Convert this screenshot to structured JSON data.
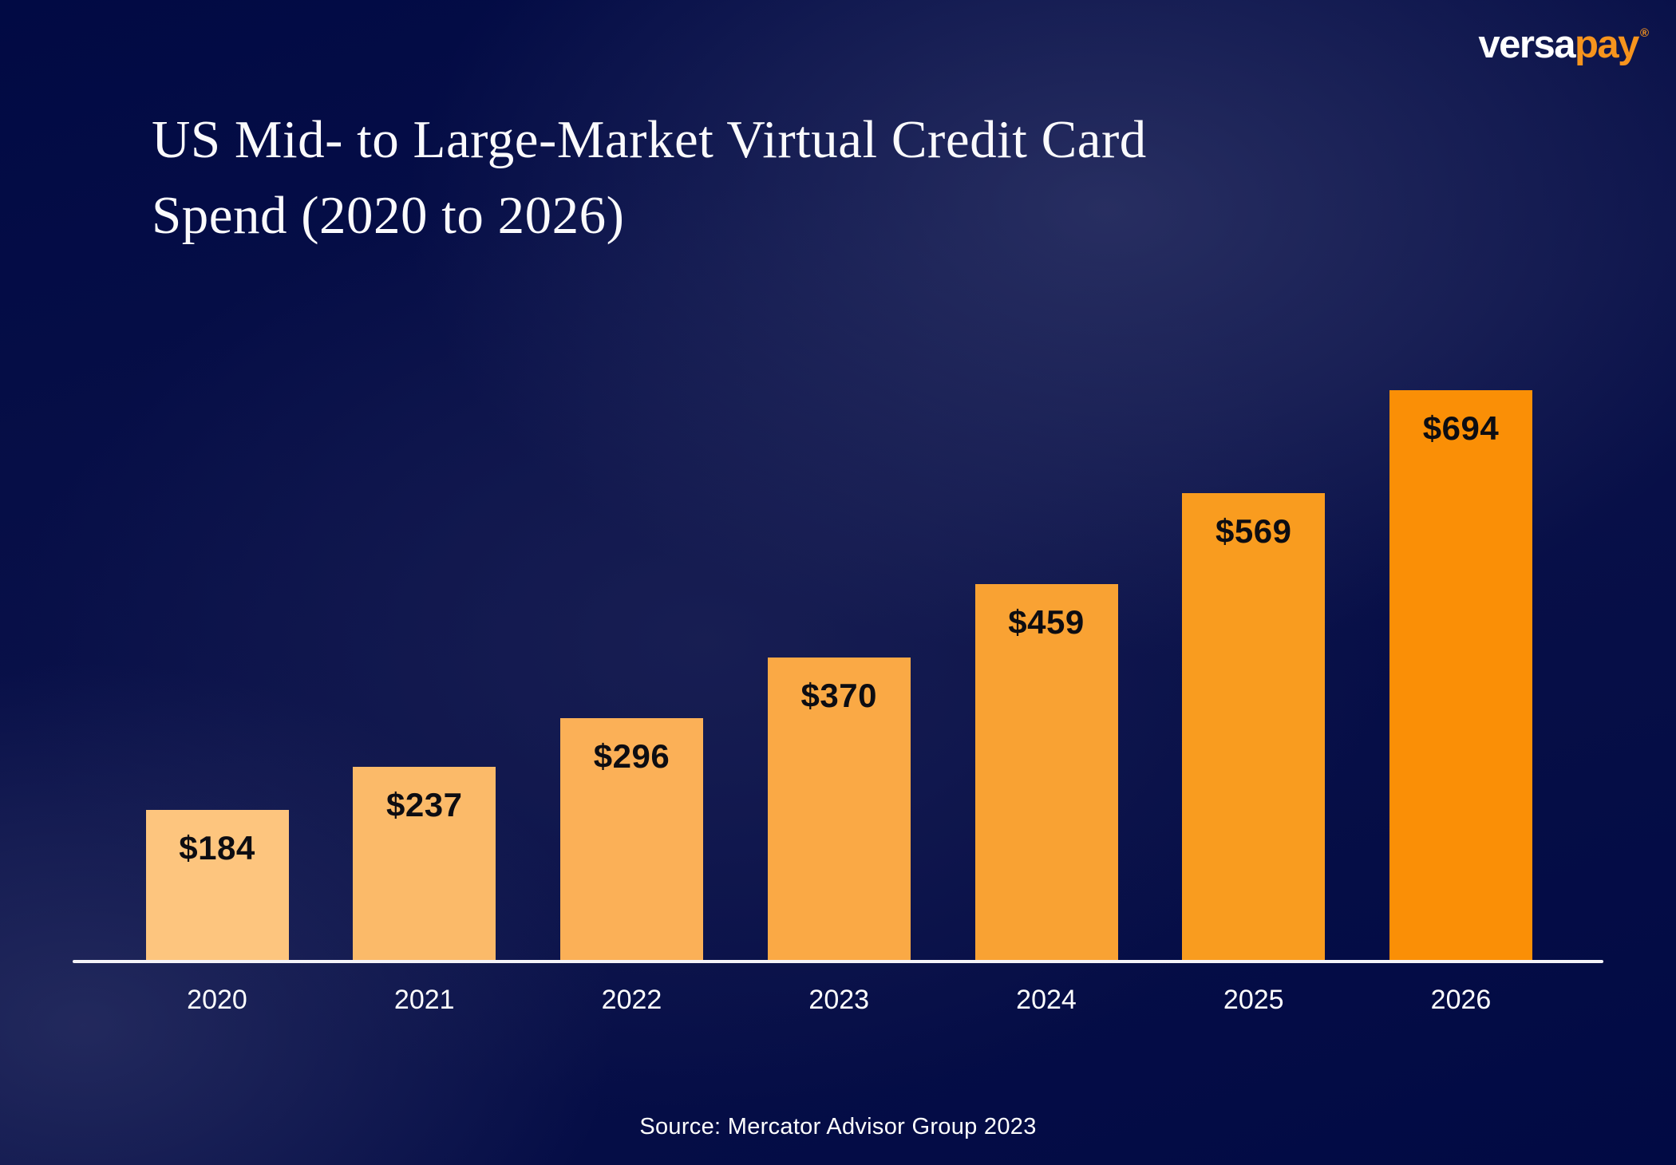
{
  "logo": {
    "brand_part1": "versa",
    "brand_part2": "pay",
    "registered_mark": "®",
    "orange": "#f7941d",
    "white": "#ffffff"
  },
  "title": {
    "line1": "US Mid- to Large-Market Virtual Credit Card",
    "line2": "Spend (2020 to 2026)",
    "color": "#fafafc"
  },
  "source": "Source: Mercator Advisor Group 2023",
  "chart_data": {
    "type": "bar",
    "title": "US Mid- to Large-Market Virtual Credit Card Spend (2020 to 2026)",
    "categories": [
      "2020",
      "2021",
      "2022",
      "2023",
      "2024",
      "2025",
      "2026"
    ],
    "values": [
      184,
      237,
      296,
      370,
      459,
      569,
      694
    ],
    "value_labels": [
      "$184",
      "$237",
      "$296",
      "$370",
      "$459",
      "$569",
      "$694"
    ],
    "value_prefix": "$",
    "bar_colors": [
      "#FDC57E",
      "#FBBA69",
      "#FBB057",
      "#FAA945",
      "#F9A233",
      "#F99C1F",
      "#FA8F06"
    ],
    "xlabel": "",
    "ylabel": "",
    "ylim": [
      0,
      720
    ],
    "grid": false,
    "legend": false,
    "value_label_position": "inside-top",
    "value_label_color": "#0d0d12",
    "tick_label_color": "#ffffff",
    "baseline_color": "#f4f3f8",
    "background_color": "#0a1149"
  }
}
